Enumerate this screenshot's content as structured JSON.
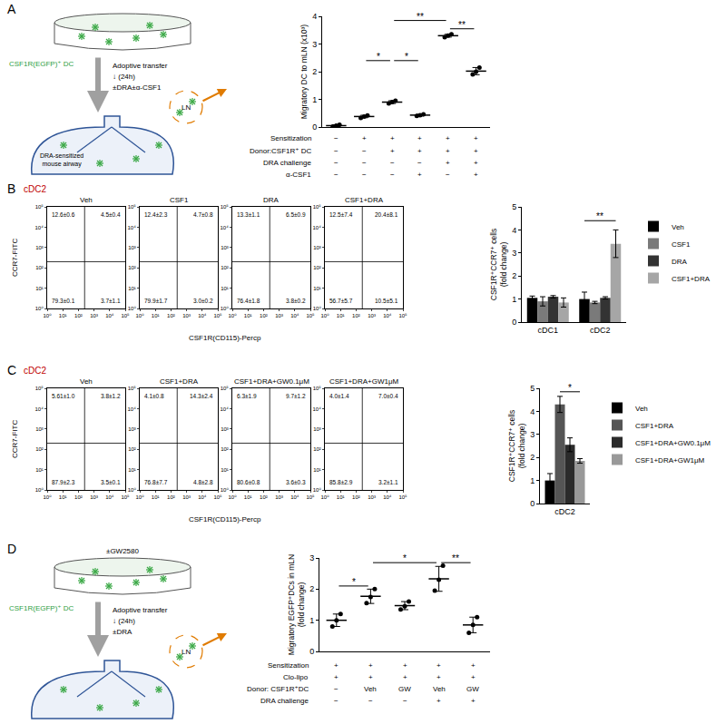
{
  "panel_labels": [
    "A",
    "B",
    "C",
    "D"
  ],
  "schematics": [
    {
      "dish_cells": "CSF1R(EGFP)⁺ DC",
      "transfer": [
        "Adoptive transfer",
        "↓ (24h)",
        "±DRA±α-CSF1"
      ],
      "airway": "DRA-sensitized\nmouse airway",
      "node": "LN"
    },
    {
      "dish_treatment": "±GW2580",
      "dish_cells": "CSF1R(EGFP)⁺ DC",
      "transfer": [
        "Adoptive transfer",
        "↓ (24h)",
        "±DRA"
      ],
      "node": "LN"
    }
  ],
  "chart_data": [
    {
      "type": "dot_plot",
      "ylabel": "Migratory DC to mLN (x10³)",
      "ylim": [
        0,
        4
      ],
      "yticks": [
        0,
        1,
        2,
        3,
        4
      ],
      "grid": false,
      "tick_labels": "y",
      "color": "#000000",
      "values": [
        0.05,
        0.38,
        0.9,
        0.43,
        3.3,
        2.02
      ],
      "error": [
        0.03,
        0.045,
        0.05,
        0.03,
        0.05,
        0.13
      ],
      "points": [
        [
          0.02,
          0.05,
          0.08
        ],
        [
          0.33,
          0.38,
          0.42
        ],
        [
          0.85,
          0.9,
          0.95
        ],
        [
          0.4,
          0.43,
          0.46
        ],
        [
          3.25,
          3.3,
          3.35
        ],
        [
          1.9,
          2.0,
          2.15
        ]
      ],
      "significance": [
        {
          "from": 1,
          "to": 2,
          "y": 2.4,
          "label": "*"
        },
        {
          "from": 2,
          "to": 3,
          "y": 2.4,
          "label": "*"
        },
        {
          "from": 2,
          "to": 4,
          "y": 3.85,
          "label": "**"
        },
        {
          "from": 4,
          "to": 5,
          "y": 3.55,
          "label": "**"
        }
      ],
      "condition_table": [
        {
          "label": "Sensitization",
          "values": [
            "−",
            "+",
            "+",
            "+",
            "+",
            "+"
          ]
        },
        {
          "label": "Donor:CSF1R⁺ DC",
          "values": [
            "−",
            "−",
            "+",
            "+",
            "+",
            "+"
          ]
        },
        {
          "label": "DRA challenge",
          "values": [
            "−",
            "−",
            "−",
            "−",
            "+",
            "+"
          ]
        },
        {
          "label": "α-CSF1",
          "values": [
            "−",
            "−",
            "−",
            "+",
            "−",
            "+"
          ]
        }
      ]
    },
    {
      "type": "flow_quadrant",
      "subset": "cDC2",
      "subset_color": "#c00000",
      "xlabel": "CSF1R(CD115)-Percp",
      "ylabel": "CCR7-FITC",
      "log": true,
      "grid": false,
      "xlim": [
        1,
        100000
      ],
      "ylim": [
        1,
        100000
      ],
      "xticks": [
        {
          "value": 1,
          "label": "10⁰"
        },
        {
          "value": 10,
          "label": "10¹"
        },
        {
          "value": 100,
          "label": "10²"
        },
        {
          "value": 1000,
          "label": "10³"
        },
        {
          "value": 10000,
          "label": "10⁴"
        },
        {
          "value": 100000,
          "label": "10⁵"
        }
      ],
      "yticks": [
        {
          "value": 1,
          "label": "10⁰"
        },
        {
          "value": 10,
          "label": "10¹"
        },
        {
          "value": 100,
          "label": "10²"
        },
        {
          "value": 1000,
          "label": "10³"
        },
        {
          "value": 10000,
          "label": "10⁴"
        },
        {
          "value": 100000,
          "label": "10⁵"
        }
      ],
      "gates": {
        "x": 250,
        "y": 200
      },
      "plots": [
        {
          "title": "Veh",
          "quadrants": {
            "upper_left": "12.6±0.6",
            "upper_right": "4.5±0.4",
            "lower_left": "79.3±0.1",
            "lower_right": "3.7±1.1"
          }
        },
        {
          "title": "CSF1",
          "quadrants": {
            "upper_left": "12.4±2.3",
            "upper_right": "4.7±0.8",
            "lower_left": "79.9±1.7",
            "lower_right": "3.0±0.2"
          }
        },
        {
          "title": "DRA",
          "quadrants": {
            "upper_left": "13.3±1.1",
            "upper_right": "6.5±0.9",
            "lower_left": "76.4±1.8",
            "lower_right": "3.8±0.2"
          }
        },
        {
          "title": "CSF1+DRA",
          "quadrants": {
            "upper_left": "12.5±7.4",
            "upper_right": "20.4±8.1",
            "lower_left": "56.7±5.7",
            "lower_right": "10.5±5.1"
          }
        }
      ]
    },
    {
      "type": "bar",
      "ylabel": "CSF1R⁺CCR7⁺ cells\n(fold change)",
      "ylim": [
        0,
        5
      ],
      "yticks": [
        0,
        1,
        2,
        3,
        4,
        5
      ],
      "grid": false,
      "legend": "right",
      "categories": [
        "cDC1",
        "cDC2"
      ],
      "series": [
        {
          "name": "Veh",
          "color": "#000000",
          "values": [
            1.05,
            1.0
          ],
          "error": [
            0.08,
            0.3
          ]
        },
        {
          "name": "CSF1",
          "color": "#7a7a7a",
          "values": [
            0.9,
            0.85
          ],
          "error": [
            0.2,
            0.05
          ]
        },
        {
          "name": "DRA",
          "color": "#333333",
          "values": [
            1.1,
            1.05
          ],
          "error": [
            0.05,
            0.05
          ]
        },
        {
          "name": "CSF1+DRA",
          "color": "#a6a6a6",
          "values": [
            0.85,
            3.4
          ],
          "error": [
            0.2,
            0.6
          ]
        }
      ],
      "significance": [
        {
          "category": 1,
          "from": 0,
          "to": 3,
          "y": 4.4,
          "label": "**"
        }
      ]
    },
    {
      "type": "flow_quadrant",
      "subset": "cDC2",
      "subset_color": "#c00000",
      "xlabel": "CSF1R(CD115)-Percp",
      "ylabel": "CCR7-FITC",
      "log": true,
      "grid": false,
      "xlim": [
        1,
        100000
      ],
      "ylim": [
        1,
        100000
      ],
      "xticks": [
        {
          "value": 1,
          "label": "10⁰"
        },
        {
          "value": 10,
          "label": "10¹"
        },
        {
          "value": 100,
          "label": "10²"
        },
        {
          "value": 1000,
          "label": "10³"
        },
        {
          "value": 10000,
          "label": "10⁴"
        },
        {
          "value": 100000,
          "label": "10⁵"
        }
      ],
      "yticks": [
        {
          "value": 1,
          "label": "10⁰"
        },
        {
          "value": 10,
          "label": "10¹"
        },
        {
          "value": 100,
          "label": "10²"
        },
        {
          "value": 1000,
          "label": "10³"
        },
        {
          "value": 10000,
          "label": "10⁴"
        },
        {
          "value": 100000,
          "label": "10⁵"
        }
      ],
      "gates": {
        "x": 250,
        "y": 200
      },
      "plots": [
        {
          "title": "Veh",
          "quadrants": {
            "upper_left": "5.61±1.0",
            "upper_right": "3.8±1.2",
            "lower_left": "87.9±2.3",
            "lower_right": "3.5±0.1"
          }
        },
        {
          "title": "CSF1+DRA",
          "quadrants": {
            "upper_left": "4.1±0.8",
            "upper_right": "14.3±2.4",
            "lower_left": "76.8±7.7",
            "lower_right": "4.8±2.8"
          }
        },
        {
          "title": "CSF1+DRA+GW0.1μM",
          "quadrants": {
            "upper_left": "6.3±1.9",
            "upper_right": "9.7±1.2",
            "lower_left": "80.6±0.8",
            "lower_right": "3.6±0.3"
          }
        },
        {
          "title": "CSF1+DRA+GW1μM",
          "quadrants": {
            "upper_left": "4.0±1.4",
            "upper_right": "7.0±0.4",
            "lower_left": "85.8±2.9",
            "lower_right": "3.2±1.1"
          }
        }
      ]
    },
    {
      "type": "bar",
      "ylabel": "CSF1R⁺CCR7⁺ cells\n(fold change)",
      "ylim": [
        0,
        5
      ],
      "yticks": [
        0,
        1,
        2,
        3,
        4,
        5
      ],
      "grid": false,
      "legend": "right",
      "categories": [
        "cDC2"
      ],
      "series": [
        {
          "name": "Veh",
          "color": "#000000",
          "values": [
            1.0
          ],
          "error": [
            0.3
          ]
        },
        {
          "name": "CSF1+DRA",
          "color": "#555555",
          "values": [
            4.3
          ],
          "error": [
            0.35
          ]
        },
        {
          "name": "CSF1+DRA+GW0.1μM",
          "color": "#2b2b2b",
          "values": [
            2.55
          ],
          "error": [
            0.3
          ]
        },
        {
          "name": "CSF1+DRA+GW1μM",
          "color": "#999999",
          "values": [
            1.85
          ],
          "error": [
            0.1
          ]
        }
      ],
      "significance": [
        {
          "category": 0,
          "from": 1,
          "to": 3,
          "y": 4.85,
          "label": "*"
        }
      ]
    },
    {
      "type": "dot_plot",
      "ylabel": "Migratory EGFP⁺DCs in mLN\n(fold change)",
      "ylim": [
        0,
        3
      ],
      "yticks": [
        0,
        1,
        2,
        3
      ],
      "grid": false,
      "tick_labels": "y",
      "color": "#000000",
      "values": [
        1.0,
        1.77,
        1.47,
        2.33,
        0.85
      ],
      "error": [
        0.2,
        0.23,
        0.13,
        0.4,
        0.25
      ],
      "points": [
        [
          0.8,
          1.0,
          1.2
        ],
        [
          1.55,
          1.75,
          2.0
        ],
        [
          1.35,
          1.45,
          1.6
        ],
        [
          1.95,
          2.3,
          2.75
        ],
        [
          0.6,
          0.85,
          1.1
        ]
      ],
      "significance": [
        {
          "from": 0,
          "to": 1,
          "y": 2.1,
          "label": "*"
        },
        {
          "from": 1,
          "to": 3,
          "y": 2.85,
          "label": "*"
        },
        {
          "from": 3,
          "to": 4,
          "y": 2.85,
          "label": "**"
        }
      ],
      "condition_table": [
        {
          "label": "Sensitization",
          "values": [
            "+",
            "+",
            "+",
            "+",
            "+"
          ]
        },
        {
          "label": "Clo-lipo",
          "values": [
            "+",
            "+",
            "+",
            "+",
            "+"
          ]
        },
        {
          "label": "Donor: CSF1R⁺DC",
          "values": [
            "−",
            "Veh",
            "GW",
            "Veh",
            "GW"
          ]
        },
        {
          "label": "DRA challenge",
          "values": [
            "−",
            "−",
            "−",
            "+",
            "+"
          ]
        }
      ]
    }
  ]
}
